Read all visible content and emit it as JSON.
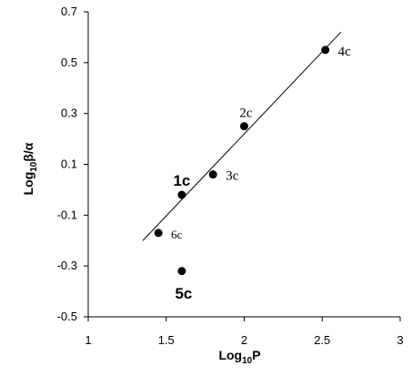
{
  "chart_data": {
    "type": "scatter",
    "title": "",
    "xlabel": {
      "base": "Log",
      "sub": "10",
      "rest": "P"
    },
    "ylabel": {
      "base": "Log",
      "sub": "10",
      "rest": "β/α"
    },
    "xlim": [
      1,
      3
    ],
    "ylim": [
      -0.5,
      0.7
    ],
    "xticks": [
      1,
      1.5,
      2,
      2.5,
      3
    ],
    "xtick_labels": [
      "1",
      "1.5",
      "2",
      "2.5",
      "3"
    ],
    "yticks": [
      -0.5,
      -0.3,
      -0.1,
      0.1,
      0.3,
      0.5,
      0.7
    ],
    "ytick_labels": [
      "-0.5",
      "-0.3",
      "-0.1",
      "0.1",
      "0.3",
      "0.5",
      "0.7"
    ],
    "grid": false,
    "points": [
      {
        "label": "4c",
        "x": 2.52,
        "y": 0.55,
        "style": "normal",
        "pos": "right"
      },
      {
        "label": "2c",
        "x": 2.0,
        "y": 0.25,
        "style": "normal",
        "pos": "above"
      },
      {
        "label": "3c",
        "x": 1.8,
        "y": 0.06,
        "style": "normal",
        "pos": "right"
      },
      {
        "label": "1c",
        "x": 1.6,
        "y": -0.02,
        "style": "bold",
        "pos": "above"
      },
      {
        "label": "6c",
        "x": 1.45,
        "y": -0.17,
        "style": "small",
        "pos": "right"
      },
      {
        "label": "5c",
        "x": 1.6,
        "y": -0.32,
        "style": "bold",
        "pos": "below"
      }
    ],
    "trendline": {
      "x1": 1.35,
      "y1": -0.2,
      "x2": 2.62,
      "y2": 0.62
    },
    "colors": {
      "marker": "#000000",
      "line": "#000000",
      "axis": "#000000"
    }
  }
}
